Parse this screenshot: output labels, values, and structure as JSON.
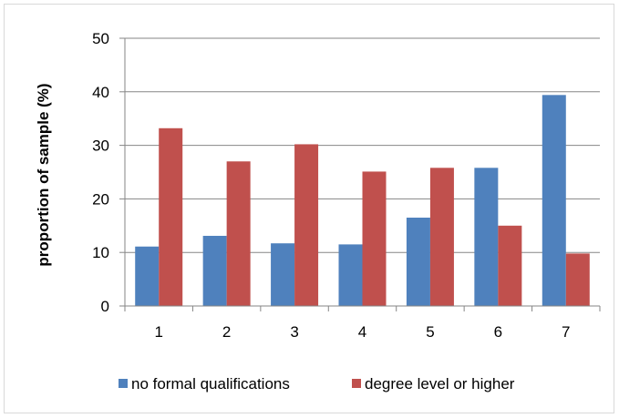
{
  "chart_data": {
    "type": "bar",
    "categories": [
      "1",
      "2",
      "3",
      "4",
      "5",
      "6",
      "7"
    ],
    "series": [
      {
        "name": "no formal qualifications",
        "color": "#4F81BD",
        "values": [
          11.1,
          13.1,
          11.7,
          11.5,
          16.5,
          25.8,
          39.4
        ]
      },
      {
        "name": "degree level or higher",
        "color": "#C0504D",
        "values": [
          33.2,
          27.0,
          30.2,
          25.1,
          25.8,
          15.0,
          9.8
        ]
      }
    ],
    "title": "",
    "xlabel": "",
    "ylabel": "proportion of sample (%)",
    "ylim": [
      0,
      50
    ],
    "yticks": [
      "0",
      "10",
      "20",
      "30",
      "40",
      "50"
    ],
    "grid": true,
    "legend_position": "bottom"
  }
}
